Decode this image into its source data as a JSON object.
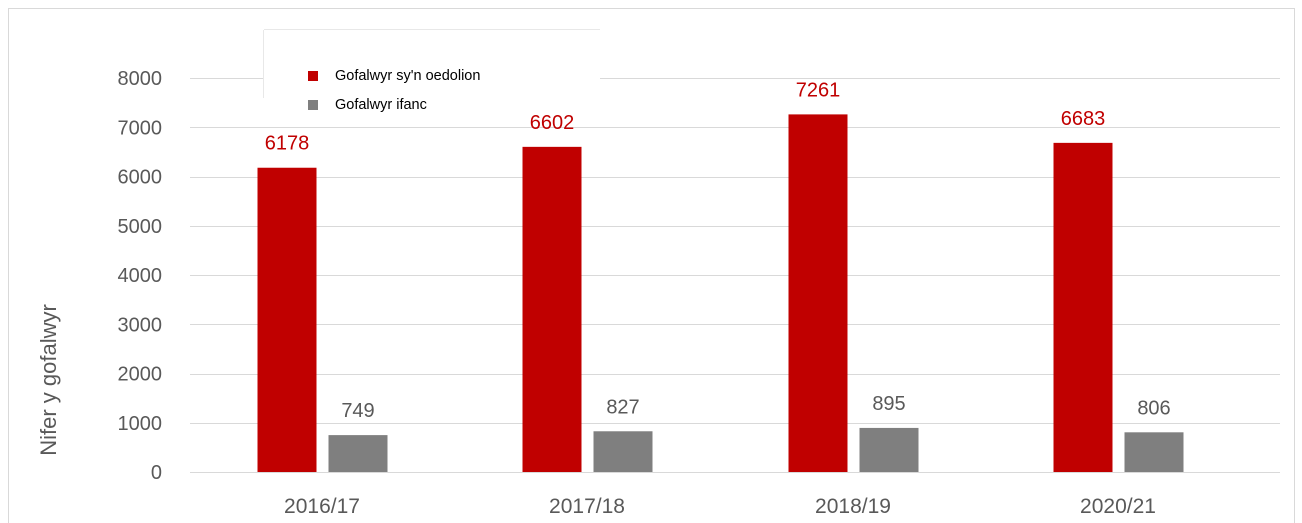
{
  "chart_data": {
    "type": "bar",
    "categories": [
      "2016/17",
      "2017/18",
      "2018/19",
      "2020/21"
    ],
    "series": [
      {
        "name": "Gofalwyr sy'n oedolion",
        "values": [
          6178,
          6602,
          7261,
          6683
        ],
        "color": "#c00000",
        "label_color": "#c00000"
      },
      {
        "name": "Gofalwyr ifanc",
        "values": [
          749,
          827,
          895,
          806
        ],
        "color": "#7f7f7f",
        "label_color": "#595959"
      }
    ],
    "ylabel": "Nifer y gofalwyr",
    "xlabel": "",
    "ylim": [
      0,
      8000
    ],
    "yticks": [
      0,
      1000,
      2000,
      3000,
      4000,
      5000,
      6000,
      7000,
      8000
    ],
    "grid": true,
    "legend_position": "top-left",
    "data_labels": true
  }
}
